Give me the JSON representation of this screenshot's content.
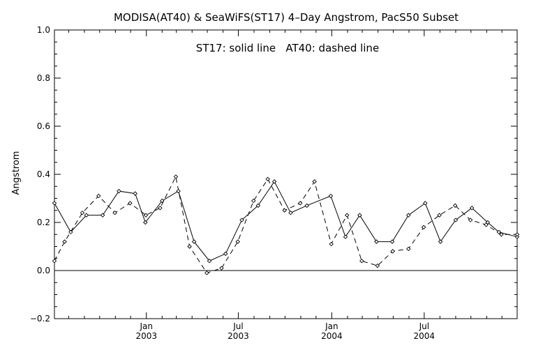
{
  "chart_data": {
    "type": "line",
    "title": "MODISA(AT40) & SeaWiFS(ST17) 4–Day Angstrom, PacS50 Subset",
    "annotation": "ST17: solid line   AT40: dashed line",
    "xlabel": "",
    "ylabel": "Angstrom",
    "xlim": [
      "2002-07-04",
      "2004-12-31"
    ],
    "ylim": [
      -0.2,
      1.0
    ],
    "y_ticks": [
      -0.2,
      0.0,
      0.2,
      0.4,
      0.6,
      0.8,
      1.0
    ],
    "y_tick_labels": [
      "−0.2",
      "0.0",
      "0.2",
      "0.4",
      "0.6",
      "0.8",
      "1.0"
    ],
    "x_ticks": [
      {
        "date": "2003-01-01",
        "line1": "Jan",
        "line2": "2003"
      },
      {
        "date": "2003-07-01",
        "line1": "Jul",
        "line2": "2003"
      },
      {
        "date": "2004-01-01",
        "line1": "Jan",
        "line2": "2004"
      },
      {
        "date": "2004-07-01",
        "line1": "Jul",
        "line2": "2004"
      }
    ],
    "zero_line": 0.0,
    "grid": false,
    "series": [
      {
        "name": "ST17",
        "line_style": "solid",
        "color": "#000000",
        "x": [
          "2002-07-04",
          "2002-08-05",
          "2002-09-05",
          "2002-10-07",
          "2002-11-08",
          "2002-12-10",
          "2002-12-30",
          "2003-02-01",
          "2003-03-05",
          "2003-04-05",
          "2003-05-05",
          "2003-06-06",
          "2003-07-08",
          "2003-08-09",
          "2003-09-10",
          "2003-10-12",
          "2003-11-13",
          "2003-12-30",
          "2004-01-28",
          "2004-02-25",
          "2004-03-29",
          "2004-04-29",
          "2004-05-31",
          "2004-07-03",
          "2004-08-02",
          "2004-09-01",
          "2004-10-03",
          "2004-11-03",
          "2004-11-25",
          "2004-12-31"
        ],
        "y": [
          0.28,
          0.16,
          0.23,
          0.23,
          0.33,
          0.32,
          0.2,
          0.29,
          0.33,
          0.12,
          0.04,
          0.07,
          0.21,
          0.27,
          0.37,
          0.24,
          0.27,
          0.31,
          0.14,
          0.23,
          0.12,
          0.12,
          0.23,
          0.28,
          0.12,
          0.21,
          0.26,
          0.2,
          0.16,
          0.14
        ]
      },
      {
        "name": "AT40",
        "line_style": "dashed",
        "color": "#000000",
        "x": [
          "2002-07-04",
          "2002-07-24",
          "2002-08-28",
          "2002-09-29",
          "2002-10-31",
          "2002-11-30",
          "2002-12-31",
          "2003-01-28",
          "2003-02-28",
          "2003-03-27",
          "2003-04-30",
          "2003-05-29",
          "2003-06-30",
          "2003-07-31",
          "2003-08-28",
          "2003-09-30",
          "2003-10-31",
          "2003-11-28",
          "2003-12-31",
          "2004-01-31",
          "2004-02-29",
          "2004-03-31",
          "2004-04-30",
          "2004-05-31",
          "2004-06-30",
          "2004-07-31",
          "2004-08-31",
          "2004-09-30",
          "2004-10-31",
          "2004-11-30",
          "2004-12-31"
        ],
        "y": [
          0.04,
          0.12,
          0.24,
          0.31,
          0.24,
          0.28,
          0.23,
          0.26,
          0.39,
          0.1,
          -0.01,
          0.01,
          0.12,
          0.29,
          0.38,
          0.25,
          0.28,
          0.37,
          0.11,
          0.23,
          0.04,
          0.02,
          0.08,
          0.09,
          0.18,
          0.23,
          0.27,
          0.21,
          0.19,
          0.15,
          0.15
        ]
      }
    ]
  }
}
